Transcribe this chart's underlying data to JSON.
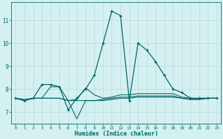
{
  "xlabel": "Humidex (Indice chaleur)",
  "x": [
    0,
    1,
    2,
    3,
    4,
    5,
    6,
    7,
    8,
    9,
    10,
    11,
    12,
    13,
    14,
    15,
    16,
    17,
    18,
    19,
    20,
    21,
    22,
    23
  ],
  "series": [
    {
      "y": [
        7.6,
        7.5,
        7.6,
        8.2,
        8.2,
        8.1,
        7.1,
        7.6,
        8.0,
        8.6,
        10.0,
        11.4,
        11.2,
        7.5,
        10.0,
        9.7,
        9.2,
        8.6,
        8.0,
        7.85,
        7.6,
        7.6,
        7.6,
        7.6
      ],
      "marker": true
    },
    {
      "y": [
        7.6,
        7.55,
        7.6,
        7.6,
        8.1,
        8.1,
        7.5,
        7.55,
        8.05,
        7.75,
        7.6,
        7.65,
        7.75,
        7.75,
        7.8,
        7.8,
        7.8,
        7.8,
        7.8,
        7.65,
        7.6,
        7.6,
        7.6,
        7.6
      ],
      "marker": false
    },
    {
      "y": [
        7.6,
        7.5,
        7.6,
        7.6,
        7.6,
        7.6,
        7.5,
        6.7,
        7.5,
        7.5,
        7.55,
        7.6,
        7.65,
        7.65,
        7.7,
        7.7,
        7.7,
        7.7,
        7.7,
        7.6,
        7.55,
        7.55,
        7.6,
        7.6
      ],
      "marker": false
    },
    {
      "y": [
        7.6,
        7.5,
        7.6,
        7.6,
        7.6,
        7.6,
        7.5,
        7.5,
        7.5,
        7.5,
        7.5,
        7.55,
        7.6,
        7.6,
        7.65,
        7.65,
        7.65,
        7.65,
        7.65,
        7.6,
        7.55,
        7.55,
        7.6,
        7.6
      ],
      "marker": false
    }
  ],
  "line_color": "#006666",
  "bg_color": "#d4f0f0",
  "grid_color": "#b8dada",
  "ylim": [
    6.5,
    11.8
  ],
  "yticks": [
    7,
    8,
    9,
    10,
    11
  ],
  "xlim": [
    -0.5,
    23.5
  ],
  "xticks": [
    0,
    1,
    2,
    3,
    4,
    5,
    6,
    7,
    8,
    9,
    10,
    11,
    12,
    13,
    14,
    15,
    16,
    17,
    18,
    19,
    20,
    21,
    22,
    23
  ],
  "xtick_labels": [
    "0",
    "1",
    "2",
    "3",
    "4",
    "5",
    "6",
    "7",
    "8",
    "9",
    "10",
    "11",
    "12",
    "13",
    "14",
    "15",
    "16",
    "17",
    "18",
    "19",
    "20",
    "21",
    "22",
    "23"
  ]
}
